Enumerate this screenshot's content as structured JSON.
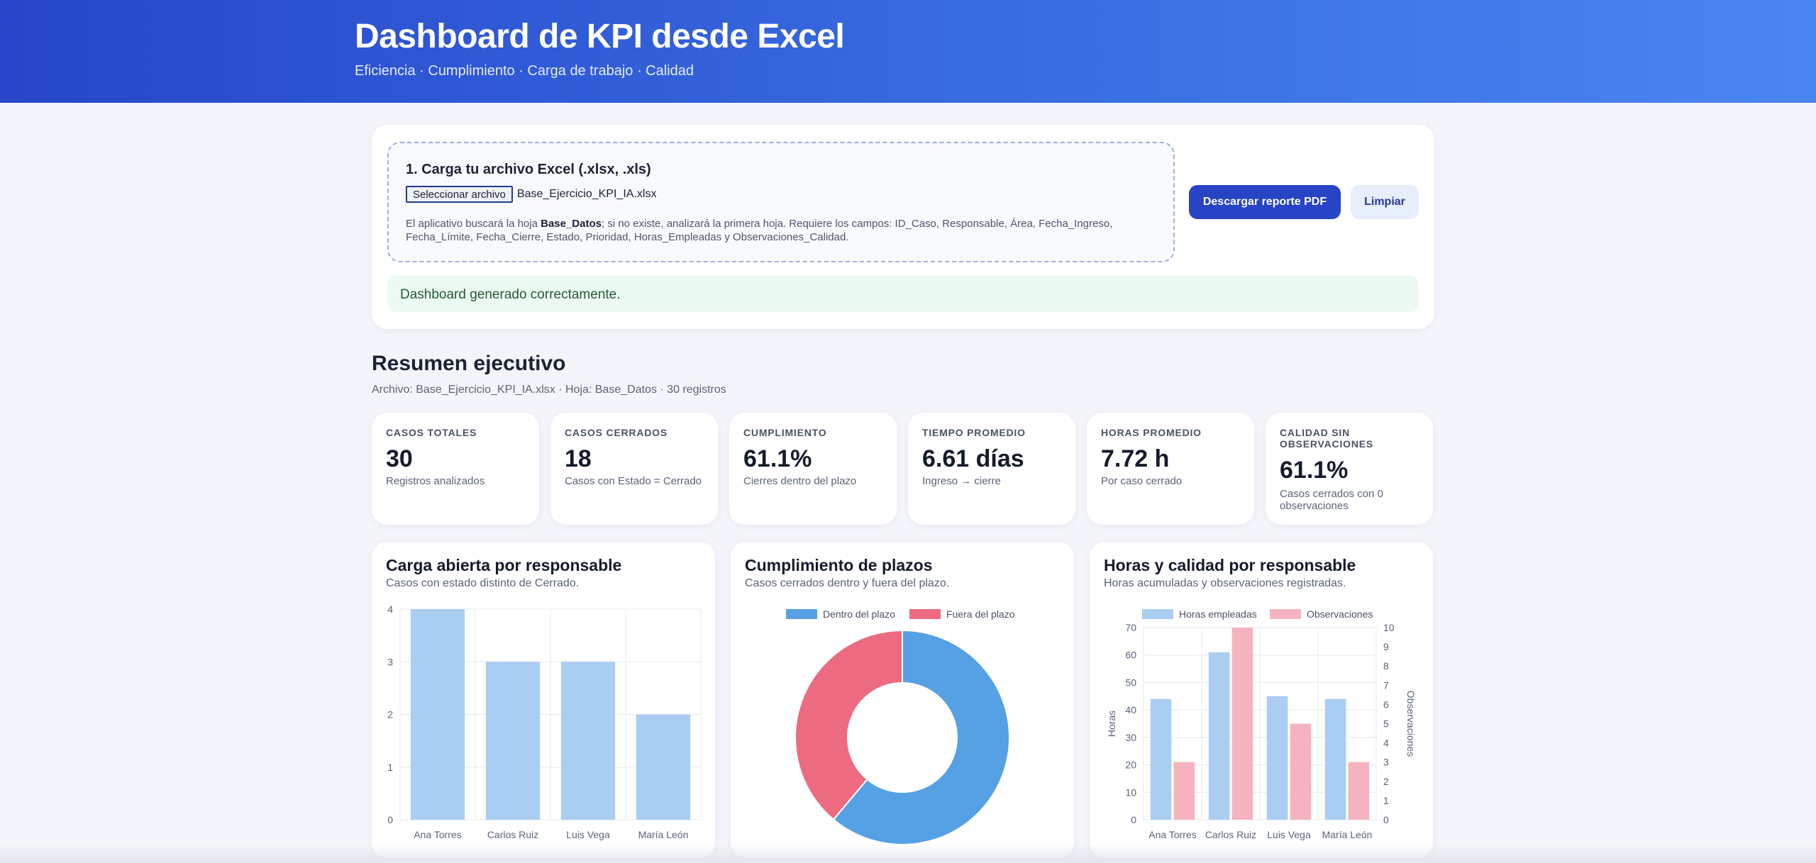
{
  "header": {
    "title": "Dashboard de KPI desde Excel",
    "subtitle": "Eficiencia · Cumplimiento · Carga de trabajo · Calidad"
  },
  "upload": {
    "title": "1. Carga tu archivo Excel (.xlsx, .xls)",
    "file_button": "Seleccionar archivo",
    "file_name": "Base_Ejercicio_KPI_IA.xlsx",
    "help_prefix": "El aplicativo buscará la hoja ",
    "help_sheet": "Base_Datos",
    "help_suffix": "; si no existe, analizará la primera hoja. Requiere los campos: ID_Caso, Responsable, Área, Fecha_Ingreso, Fecha_Límite, Fecha_Cierre, Estado, Prioridad, Horas_Empleadas y Observaciones_Calidad.",
    "pdf_button": "Descargar reporte PDF",
    "clear_button": "Limpiar",
    "status": "Dashboard generado correctamente."
  },
  "summary": {
    "title": "Resumen ejecutivo",
    "meta": "Archivo: Base_Ejercicio_KPI_IA.xlsx · Hoja: Base_Datos · 30 registros"
  },
  "kpis": [
    {
      "label": "Casos totales",
      "value": "30",
      "desc": "Registros analizados"
    },
    {
      "label": "Casos cerrados",
      "value": "18",
      "desc": "Casos con Estado = Cerrado"
    },
    {
      "label": "Cumplimiento",
      "value": "61.1%",
      "desc": "Cierres dentro del plazo"
    },
    {
      "label": "Tiempo promedio",
      "value": "6.61 días",
      "desc": "Ingreso → cierre"
    },
    {
      "label": "Horas promedio",
      "value": "7.72 h",
      "desc": "Por caso cerrado"
    },
    {
      "label": "Calidad sin observaciones",
      "value": "61.1%",
      "desc": "Casos cerrados con 0 observaciones"
    }
  ],
  "charts": {
    "carga": {
      "title": "Carga abierta por responsable",
      "subtitle": "Casos con estado distinto de Cerrado."
    },
    "cumplimiento": {
      "title": "Cumplimiento de plazos",
      "subtitle": "Casos cerrados dentro y fuera del plazo."
    },
    "horas": {
      "title": "Horas y calidad por responsable",
      "subtitle": "Horas acumuladas y observaciones registradas."
    }
  },
  "colors": {
    "bar_blue": "#aacdf2",
    "donut_blue": "#56a0e4",
    "donut_red": "#ec6b80",
    "bar_pink": "#f5b3bf"
  },
  "chart_data": [
    {
      "type": "bar",
      "categories": [
        "Ana Torres",
        "Carlos Ruiz",
        "Luis Vega",
        "María León"
      ],
      "values": [
        4,
        3,
        3,
        2
      ],
      "ylim": [
        0,
        4
      ],
      "yticks": [
        0,
        1,
        2,
        3,
        4
      ],
      "grid": true
    },
    {
      "type": "pie",
      "donut": true,
      "labels": [
        "Dentro del plazo",
        "Fuera del plazo"
      ],
      "values": [
        11,
        7
      ],
      "legend": "top"
    },
    {
      "type": "bar",
      "categories": [
        "Ana Torres",
        "Carlos Ruiz",
        "Luis Vega",
        "María León"
      ],
      "series": [
        {
          "name": "Horas empleadas",
          "values": [
            44,
            61,
            45,
            44
          ],
          "axis": "left"
        },
        {
          "name": "Observaciones",
          "values": [
            3,
            10,
            5,
            3
          ],
          "axis": "right"
        }
      ],
      "ylabel": "Horas",
      "y2label": "Observaciones",
      "ylim": [
        0,
        70
      ],
      "yticks": [
        0,
        10,
        20,
        30,
        40,
        50,
        60,
        70
      ],
      "y2lim": [
        0,
        10
      ],
      "y2ticks": [
        0,
        1,
        2,
        3,
        4,
        5,
        6,
        7,
        8,
        9,
        10
      ],
      "legend": "top",
      "grid": true
    }
  ]
}
